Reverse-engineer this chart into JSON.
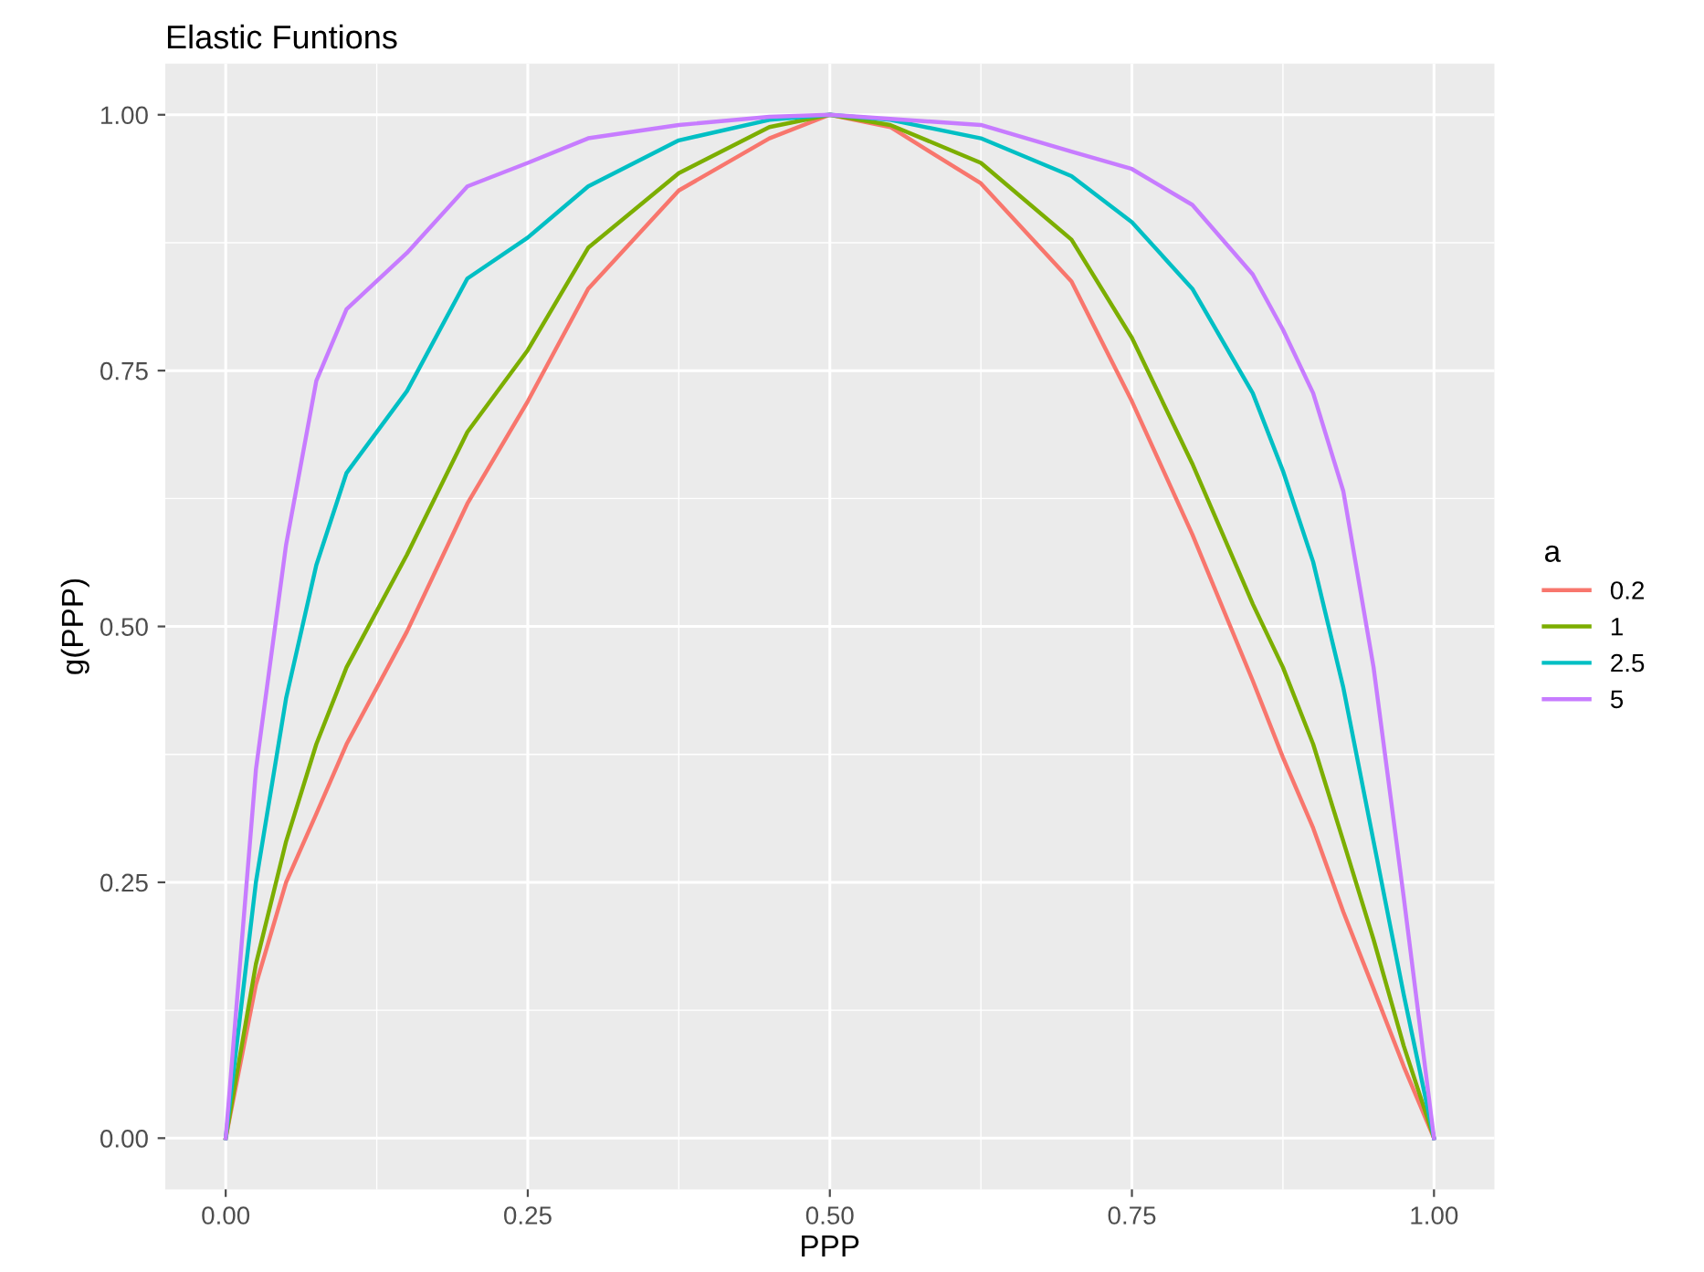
{
  "chart_data": {
    "type": "line",
    "title": "Elastic Funtions",
    "xlabel": "PPP",
    "ylabel": "g(PPP)",
    "legend_title": "a",
    "legend": "right",
    "grid": true,
    "marker": "none",
    "line_style": "solid",
    "x": [
      0,
      0.025,
      0.05,
      0.075,
      0.1,
      0.15,
      0.2,
      0.25,
      0.3,
      0.375,
      0.45,
      0.5,
      0.55,
      0.625,
      0.7,
      0.75,
      0.8,
      0.85,
      0.875,
      0.9,
      0.925,
      0.95,
      0.975,
      1
    ],
    "xlim": [
      -0.05,
      1.05
    ],
    "ylim": [
      -0.05,
      1.05
    ],
    "xticks": [
      {
        "value": 0,
        "label": "0.00"
      },
      {
        "value": 0.25,
        "label": "0.25"
      },
      {
        "value": 0.5,
        "label": "0.50"
      },
      {
        "value": 0.75,
        "label": "0.75"
      },
      {
        "value": 1,
        "label": "1.00"
      }
    ],
    "yticks": [
      {
        "value": 0,
        "label": "0.00"
      },
      {
        "value": 0.25,
        "label": "0.25"
      },
      {
        "value": 0.5,
        "label": "0.50"
      },
      {
        "value": 0.75,
        "label": "0.75"
      },
      {
        "value": 1,
        "label": "1.00"
      }
    ],
    "series": [
      {
        "name": "0.2",
        "color": "#f8766d",
        "values": [
          0,
          0.15,
          0.25,
          0.317,
          0.385,
          0.495,
          0.62,
          0.72,
          0.83,
          0.926,
          0.977,
          1,
          0.988,
          0.933,
          0.837,
          0.72,
          0.59,
          0.447,
          0.372,
          0.303,
          0.221,
          0.146,
          0.07,
          0
        ]
      },
      {
        "name": "1",
        "color": "#7cae00",
        "values": [
          0,
          0.17,
          0.29,
          0.385,
          0.46,
          0.57,
          0.69,
          0.77,
          0.87,
          0.943,
          0.988,
          1,
          0.99,
          0.953,
          0.878,
          0.782,
          0.659,
          0.522,
          0.46,
          0.385,
          0.29,
          0.194,
          0.09,
          0
        ]
      },
      {
        "name": "2.5",
        "color": "#00bfc4",
        "values": [
          0,
          0.25,
          0.43,
          0.56,
          0.65,
          0.73,
          0.84,
          0.88,
          0.93,
          0.975,
          0.995,
          1,
          0.995,
          0.977,
          0.94,
          0.895,
          0.83,
          0.728,
          0.652,
          0.563,
          0.44,
          0.29,
          0.14,
          0
        ]
      },
      {
        "name": "5",
        "color": "#c77cff",
        "values": [
          0,
          0.36,
          0.58,
          0.74,
          0.81,
          0.865,
          0.93,
          0.953,
          0.977,
          0.99,
          0.998,
          1,
          0.996,
          0.99,
          0.964,
          0.947,
          0.912,
          0.844,
          0.79,
          0.728,
          0.632,
          0.46,
          0.235,
          0
        ]
      }
    ]
  }
}
